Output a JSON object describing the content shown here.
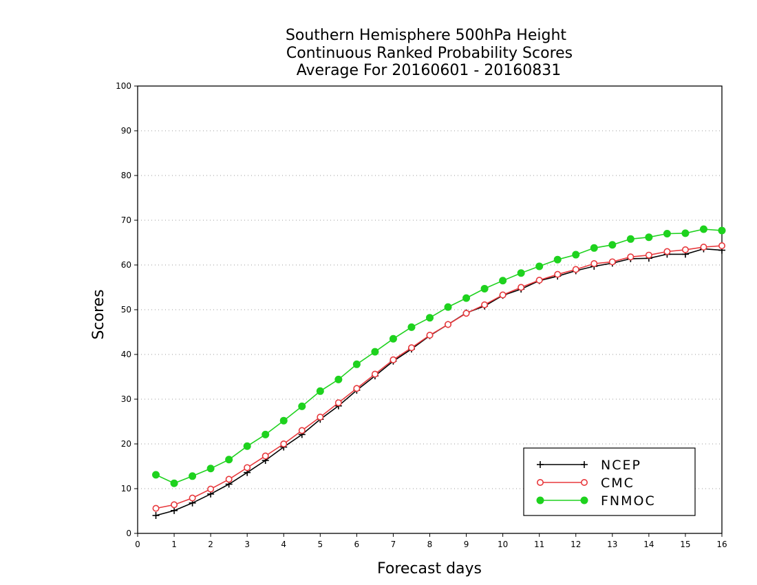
{
  "chart_data": {
    "type": "line",
    "title_lines": [
      "Southern Hemisphere 500hPa Height",
      "Continuous Ranked Probability Scores",
      "Average For 20160601 - 20160831"
    ],
    "xlabel": "Forecast days",
    "ylabel": "Scores",
    "xlim": [
      0,
      16
    ],
    "ylim": [
      0,
      100
    ],
    "xticks": [
      "0",
      "1",
      "2",
      "3",
      "4",
      "5",
      "6",
      "7",
      "8",
      "9",
      "10",
      "11",
      "12",
      "13",
      "14",
      "15",
      "16"
    ],
    "yticks": [
      "0",
      "10",
      "20",
      "30",
      "40",
      "50",
      "60",
      "70",
      "80",
      "90",
      "100"
    ],
    "grid": "horizontal-dotted",
    "legend_position": "bottom-right",
    "x": [
      0.5,
      1,
      1.5,
      2,
      2.5,
      3,
      3.5,
      4,
      4.5,
      5,
      5.5,
      6,
      6.5,
      7,
      7.5,
      8,
      8.5,
      9,
      9.5,
      10,
      10.5,
      11,
      11.5,
      12,
      12.5,
      13,
      13.5,
      14,
      14.5,
      15,
      15.5,
      16
    ],
    "series": [
      {
        "name": "NCEP",
        "color": "#000000",
        "marker": "plus",
        "values": [
          4.0,
          5.1,
          6.8,
          8.8,
          11.0,
          13.6,
          16.3,
          19.3,
          22.1,
          25.5,
          28.5,
          32.0,
          35.2,
          38.5,
          41.2,
          44.2,
          46.7,
          49.3,
          50.8,
          53.2,
          54.6,
          56.5,
          57.5,
          58.7,
          59.7,
          60.4,
          61.4,
          61.5,
          62.4,
          62.4,
          63.6,
          63.3
        ]
      },
      {
        "name": "CMC",
        "color": "#e8383c",
        "marker": "open-circle",
        "values": [
          5.6,
          6.4,
          7.9,
          9.9,
          12.1,
          14.7,
          17.3,
          20.0,
          23.0,
          26.0,
          29.2,
          32.4,
          35.6,
          38.8,
          41.5,
          44.3,
          46.7,
          49.2,
          51.1,
          53.3,
          55.0,
          56.6,
          57.9,
          59.0,
          60.3,
          60.7,
          61.8,
          62.2,
          63.0,
          63.4,
          64.0,
          64.3
        ]
      },
      {
        "name": "FNMOC",
        "color": "#1ed21e",
        "marker": "filled-circle",
        "values": [
          13.1,
          11.2,
          12.8,
          14.5,
          16.5,
          19.5,
          22.1,
          25.2,
          28.4,
          31.8,
          34.4,
          37.8,
          40.6,
          43.5,
          46.1,
          48.2,
          50.6,
          52.6,
          54.7,
          56.5,
          58.2,
          59.7,
          61.2,
          62.3,
          63.8,
          64.5,
          65.8,
          66.2,
          67.0,
          67.1,
          68.0,
          67.7
        ]
      }
    ]
  }
}
